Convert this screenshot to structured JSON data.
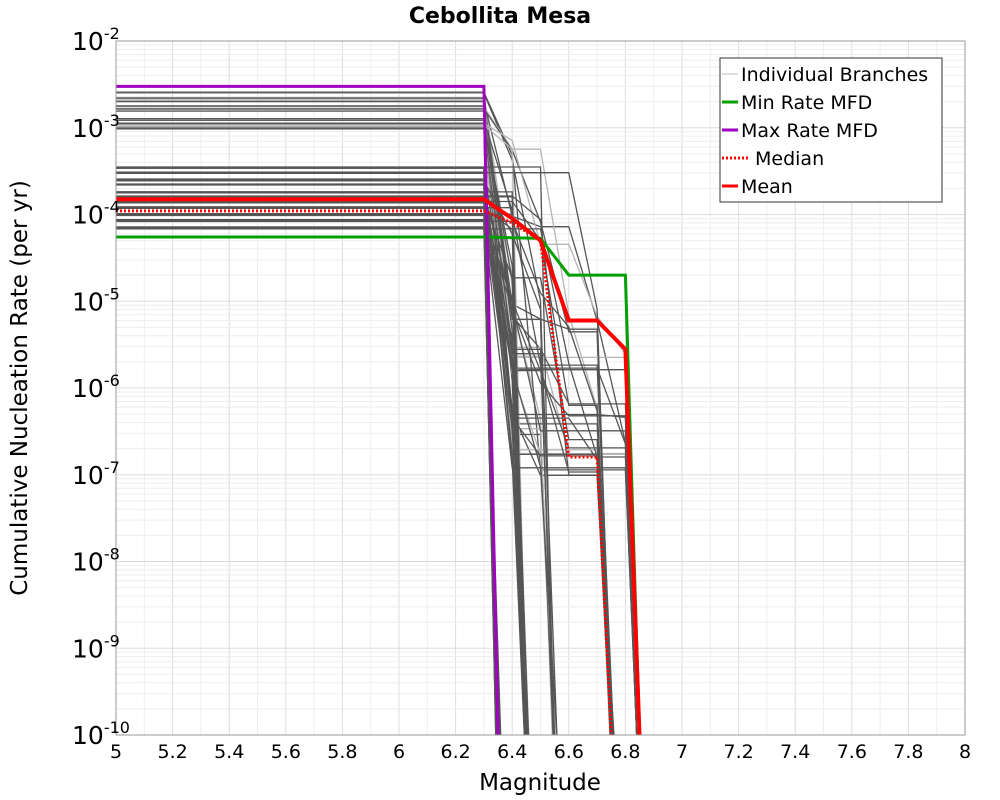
{
  "chart_data": {
    "type": "line",
    "title": "Cebollita Mesa",
    "xlabel": "Magnitude",
    "ylabel": "Cumulative Nucleation Rate (per yr)",
    "xlim": [
      5,
      8
    ],
    "ylim": [
      1e-10,
      0.01
    ],
    "yscale": "log",
    "grid": true,
    "legend_position": "top-right",
    "x_ticks": [
      "5",
      "5.2",
      "5.4",
      "5.6",
      "5.8",
      "6",
      "6.2",
      "6.4",
      "6.6",
      "6.8",
      "7",
      "7.2",
      "7.4",
      "7.6",
      "7.8",
      "8"
    ],
    "y_ticks": [
      {
        "base": "10",
        "exp": "-2"
      },
      {
        "base": "10",
        "exp": "-3"
      },
      {
        "base": "10",
        "exp": "-4"
      },
      {
        "base": "10",
        "exp": "-5"
      },
      {
        "base": "10",
        "exp": "-6"
      },
      {
        "base": "10",
        "exp": "-7"
      },
      {
        "base": "10",
        "exp": "-8"
      },
      {
        "base": "10",
        "exp": "-9"
      },
      {
        "base": "10",
        "exp": "-10"
      }
    ],
    "legend": [
      {
        "label": "Individual Branches",
        "color": "#bbbbbb",
        "style": "solid"
      },
      {
        "label": "Min Rate MFD",
        "color": "#00a000",
        "style": "solid"
      },
      {
        "label": "Max Rate MFD",
        "color": "#a000c0",
        "style": "solid"
      },
      {
        "label": "Median",
        "color": "#ff0000",
        "style": "dotted"
      },
      {
        "label": "Mean",
        "color": "#ff0000",
        "style": "solid"
      }
    ],
    "series": [
      {
        "name": "Min Rate MFD",
        "color": "#00a000",
        "width": 3,
        "dash": "",
        "x": [
          5,
          6.3,
          6.5,
          6.6,
          6.8,
          6.85
        ],
        "y": [
          5.5e-05,
          5.5e-05,
          5.3e-05,
          2e-05,
          2e-05,
          1e-10
        ]
      },
      {
        "name": "Max Rate MFD",
        "color": "#a000c0",
        "width": 3,
        "dash": "",
        "x": [
          5,
          6.3,
          6.35
        ],
        "y": [
          0.003,
          0.003,
          1e-10
        ]
      },
      {
        "name": "Median",
        "color": "#ff0000",
        "width": 3,
        "dash": "2,2",
        "x": [
          5,
          6.3,
          6.4,
          6.5,
          6.6,
          6.7,
          6.75
        ],
        "y": [
          0.00011,
          0.00011,
          8e-05,
          5e-05,
          1.6e-07,
          1.6e-07,
          1e-10
        ]
      },
      {
        "name": "Mean",
        "color": "#ff0000",
        "width": 4,
        "dash": "",
        "x": [
          5,
          6.3,
          6.4,
          6.5,
          6.6,
          6.7,
          6.8,
          6.85
        ],
        "y": [
          0.00015,
          0.00015,
          9e-05,
          5e-05,
          6e-06,
          6e-06,
          2.8e-06,
          1e-10
        ]
      }
    ],
    "branches": {
      "color_dark": "#555555",
      "color_light": "#b5b5b5",
      "x": [
        5,
        6.3,
        6.4,
        6.5,
        6.6,
        6.7,
        6.8
      ],
      "plateau_rates": [
        0.0025,
        0.0022,
        0.002,
        0.0018,
        0.0016,
        0.00125,
        0.0011,
        0.001,
        0.00035,
        0.0003,
        0.00025,
        0.00022,
        0.00018,
        0.00016,
        0.00014,
        0.00012,
        0.0001,
        8.5e-05,
        7e-05
      ],
      "tail_levels": [
        0.0007,
        0.0006,
        0.0005,
        0.0001,
        8e-05,
        5e-05,
        2e-05,
        1e-05,
        8e-06,
        5e-06,
        3e-06,
        2e-06,
        1.5e-06,
        6e-07,
        4e-07,
        3e-07,
        2e-07,
        1.4e-07
      ],
      "drop_mags": [
        6.35,
        6.45,
        6.55,
        6.75,
        6.85
      ]
    }
  }
}
